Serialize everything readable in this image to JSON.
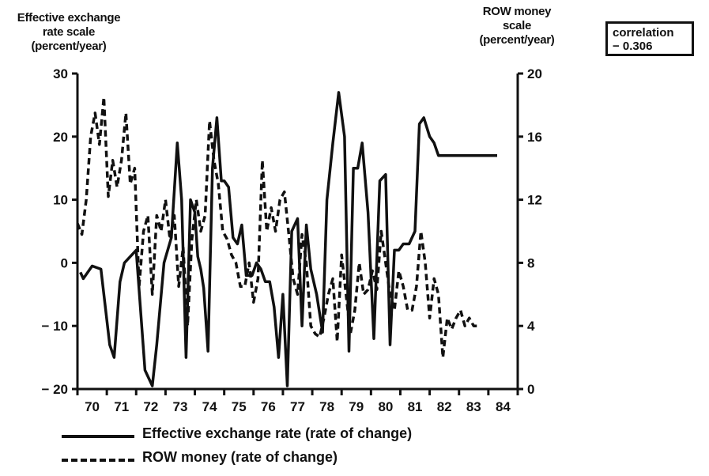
{
  "chart_data": {
    "type": "line",
    "left_axis": {
      "title": [
        "Effective exchange",
        "rate scale",
        "(percent/year)"
      ],
      "ylim": [
        -20,
        30
      ],
      "ticks": [
        -20,
        -10,
        0,
        10,
        20,
        30
      ],
      "tick_labels": [
        "− 20",
        "− 10",
        "0",
        "10",
        "20",
        "30"
      ]
    },
    "right_axis": {
      "title": [
        "ROW money",
        "scale",
        "(percent/year)"
      ],
      "ylim": [
        0,
        20
      ],
      "ticks": [
        0,
        4,
        8,
        12,
        16,
        20
      ],
      "tick_labels": [
        "0",
        "4",
        "8",
        "12",
        "16",
        "20"
      ]
    },
    "xlim": [
      70,
      85
    ],
    "x_ticks": [
      70,
      71,
      72,
      73,
      74,
      75,
      76,
      77,
      78,
      79,
      80,
      81,
      82,
      83,
      84
    ],
    "x_tick_labels": [
      "70",
      "71",
      "72",
      "73",
      "74",
      "75",
      "76",
      "77",
      "78",
      "79",
      "80",
      "81",
      "82",
      "83",
      "84"
    ],
    "series": [
      {
        "name": "Effective exchange rate (rate of change)",
        "axis": "left",
        "style": "solid",
        "x": [
          70.1,
          70.2,
          70.35,
          70.5,
          70.8,
          71.1,
          71.25,
          71.45,
          71.6,
          72.0,
          72.3,
          72.55,
          72.7,
          72.95,
          73.2,
          73.4,
          73.55,
          73.7,
          73.85,
          74.0,
          74.1,
          74.2,
          74.3,
          74.45,
          74.6,
          74.75,
          74.9,
          75.0,
          75.15,
          75.3,
          75.45,
          75.6,
          75.75,
          75.95,
          76.1,
          76.25,
          76.4,
          76.55,
          76.7,
          76.85,
          77.0,
          77.15,
          77.3,
          77.5,
          77.65,
          77.8,
          77.95,
          78.15,
          78.35,
          78.5,
          78.7,
          78.9,
          79.1,
          79.25,
          79.4,
          79.55,
          79.7,
          79.9,
          80.1,
          80.3,
          80.5,
          80.65,
          80.8,
          80.95,
          81.1,
          81.3,
          81.5,
          81.65,
          81.8,
          82.0,
          82.15,
          82.3,
          82.45,
          82.6,
          82.8,
          82.95,
          83.1,
          83.25,
          83.4,
          83.55,
          83.7,
          83.85,
          84.0,
          84.15,
          84.3
        ],
        "y": [
          -1.5,
          -2.5,
          -1.5,
          -0.5,
          -1,
          -13,
          -15,
          -3,
          0,
          2,
          -17,
          -19.5,
          -13,
          0,
          4,
          19,
          10,
          -15,
          10,
          8,
          1,
          -1,
          -4,
          -14,
          15,
          23,
          13,
          13,
          12,
          4,
          3,
          6,
          -2,
          -2,
          0,
          -1,
          -3,
          -3,
          -7,
          -15,
          -5,
          -19.5,
          5,
          7,
          -10,
          6,
          -1,
          -5,
          -11,
          10,
          19,
          27,
          20,
          -14,
          15,
          15,
          19,
          8,
          -12,
          13,
          14,
          -13,
          2,
          2,
          3,
          3,
          5,
          22,
          23,
          20,
          19,
          17,
          17,
          17,
          17,
          17,
          17,
          17,
          17,
          17,
          17,
          17,
          17,
          17,
          17
        ]
      },
      {
        "name": "ROW money (rate of change)",
        "axis": "right",
        "style": "dashed",
        "x": [
          70.0,
          70.15,
          70.3,
          70.45,
          70.6,
          70.75,
          70.9,
          71.05,
          71.2,
          71.35,
          71.5,
          71.65,
          71.8,
          71.95,
          72.1,
          72.25,
          72.4,
          72.55,
          72.7,
          72.85,
          73.0,
          73.15,
          73.3,
          73.45,
          73.6,
          73.75,
          73.9,
          74.05,
          74.2,
          74.35,
          74.5,
          74.65,
          74.8,
          74.95,
          75.1,
          75.25,
          75.4,
          75.55,
          75.7,
          75.85,
          76.0,
          76.15,
          76.3,
          76.45,
          76.6,
          76.75,
          76.9,
          77.05,
          77.2,
          77.35,
          77.5,
          77.65,
          77.8,
          77.95,
          78.1,
          78.25,
          78.4,
          78.55,
          78.7,
          78.85,
          79.0,
          79.15,
          79.3,
          79.45,
          79.6,
          79.75,
          79.9,
          80.05,
          80.2,
          80.35,
          80.5,
          80.65,
          80.8,
          80.95,
          81.1,
          81.25,
          81.4,
          81.55,
          81.7,
          81.85,
          82.0,
          82.15,
          82.3,
          82.45,
          82.6,
          82.75,
          82.9,
          83.05,
          83.2,
          83.35,
          83.5,
          83.65
        ],
        "y": [
          10.5,
          9.8,
          12,
          16,
          17.5,
          15.5,
          18.5,
          12.2,
          14.5,
          12.8,
          14.5,
          17.5,
          13,
          14,
          6.5,
          10,
          11,
          6,
          11,
          10,
          12,
          9.5,
          11,
          6.5,
          9,
          4,
          9.5,
          12,
          10,
          11,
          17,
          14.5,
          13,
          10,
          9.5,
          8.5,
          8,
          6.5,
          6.5,
          8,
          5.5,
          7,
          14.5,
          10,
          11.5,
          10,
          12,
          12.5,
          9.8,
          7,
          6,
          9.8,
          8,
          4,
          3.5,
          3.3,
          4.5,
          6,
          7,
          3,
          8.5,
          6,
          3.5,
          5,
          8,
          6,
          6.3,
          7.5,
          6.3,
          10,
          8,
          6,
          5,
          7.5,
          6.5,
          5,
          5,
          6.5,
          10,
          8,
          4.5,
          7,
          6,
          2,
          4.5,
          3.8,
          4.5,
          5,
          4,
          4.5,
          4,
          4
        ]
      }
    ]
  },
  "annotation": {
    "lines": [
      "correlation",
      "− 0.306"
    ]
  }
}
